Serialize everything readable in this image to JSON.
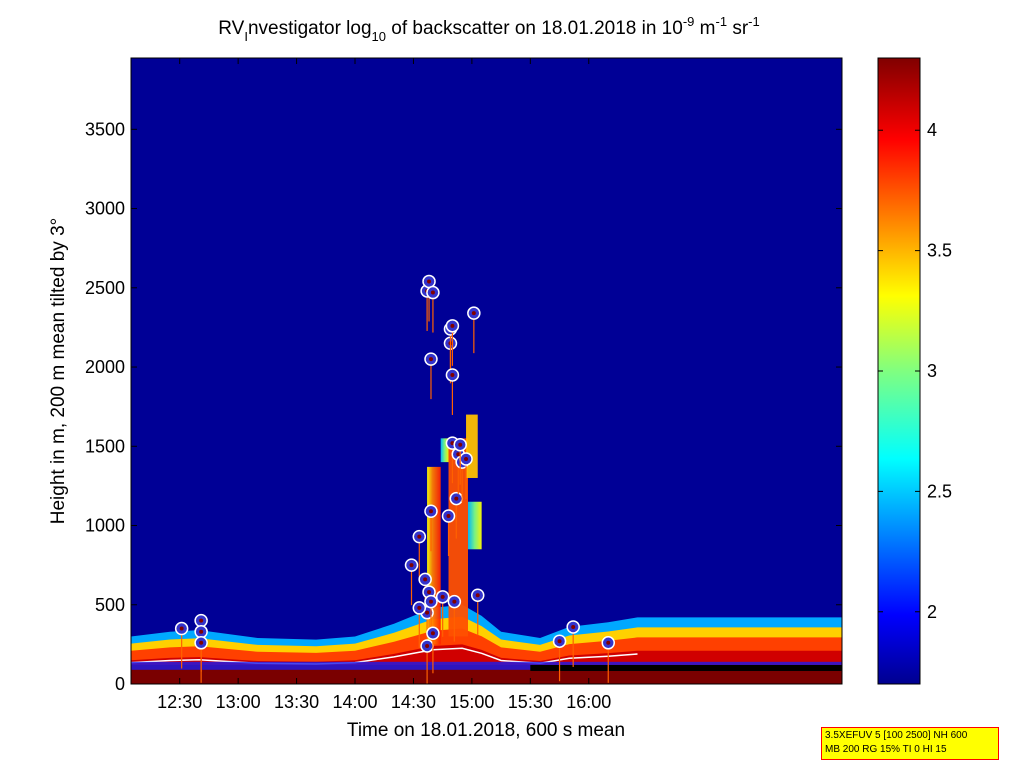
{
  "title": {
    "prefix": "RV",
    "sub1": "I",
    "middle1": "nvestigator log",
    "sub2": "10",
    "middle2": " of backscatter on 18.01.2018 in 10",
    "sup1": "-9",
    "middle3": " m",
    "sup2": "-1",
    "middle4": " sr",
    "sup3": "-1"
  },
  "info_box": {
    "line1": "3.5XEFUV 5 [100 2500] NH 600",
    "line2": "MB 200 RG 15% TI 0 HI 15"
  },
  "colors": {
    "background": "#000096",
    "layer_low": "#7a0000",
    "marker_fill": "#3333cc",
    "marker_edge": "#ffffff",
    "marker_core": "#800000"
  },
  "chart_data": {
    "type": "heatmap",
    "xlabel": "Time on 18.01.2018, 600 s mean",
    "ylabel": "Height in m, 200 m mean tilted by 3°",
    "x_unit": "minutes of day",
    "xlim": [
      725,
      1090
    ],
    "ylim": [
      0,
      3950
    ],
    "x_ticks": [
      750,
      780,
      810,
      840,
      870,
      900,
      930,
      960
    ],
    "x_tick_labels": [
      "12:30",
      "13:00",
      "13:30",
      "14:00",
      "14:30",
      "15:00",
      "15:30",
      "16:00"
    ],
    "y_ticks": [
      0,
      500,
      1000,
      1500,
      2000,
      2500,
      3000,
      3500
    ],
    "y_tick_labels": [
      "0",
      "500",
      "1000",
      "1500",
      "2000",
      "2500",
      "3000",
      "3500"
    ],
    "colorbar": {
      "range": [
        1.7,
        4.3
      ],
      "ticks": [
        2,
        2.5,
        3,
        3.5,
        4
      ],
      "tick_labels": [
        "2",
        "2.5",
        "3",
        "3.5",
        "4"
      ]
    },
    "boundary_layer_top": [
      {
        "t": 725,
        "h": 300
      },
      {
        "t": 745,
        "h": 330
      },
      {
        "t": 760,
        "h": 340
      },
      {
        "t": 790,
        "h": 290
      },
      {
        "t": 820,
        "h": 280
      },
      {
        "t": 840,
        "h": 300
      },
      {
        "t": 860,
        "h": 380
      },
      {
        "t": 880,
        "h": 480
      },
      {
        "t": 895,
        "h": 500
      },
      {
        "t": 905,
        "h": 430
      },
      {
        "t": 915,
        "h": 330
      },
      {
        "t": 935,
        "h": 290
      },
      {
        "t": 950,
        "h": 360
      },
      {
        "t": 970,
        "h": 390
      },
      {
        "t": 985,
        "h": 420
      }
    ],
    "cloud_markers": [
      {
        "t": 751,
        "h": 350
      },
      {
        "t": 761,
        "h": 400
      },
      {
        "t": 761,
        "h": 330
      },
      {
        "t": 761,
        "h": 260
      },
      {
        "t": 869,
        "h": 750
      },
      {
        "t": 873,
        "h": 930
      },
      {
        "t": 876,
        "h": 660
      },
      {
        "t": 879,
        "h": 1090
      },
      {
        "t": 877,
        "h": 2480
      },
      {
        "t": 878,
        "h": 2540
      },
      {
        "t": 880,
        "h": 2470
      },
      {
        "t": 879,
        "h": 2050
      },
      {
        "t": 888,
        "h": 1060
      },
      {
        "t": 889,
        "h": 2150
      },
      {
        "t": 889,
        "h": 2240
      },
      {
        "t": 890,
        "h": 2260
      },
      {
        "t": 890,
        "h": 1950
      },
      {
        "t": 892,
        "h": 1170
      },
      {
        "t": 890,
        "h": 1520
      },
      {
        "t": 893,
        "h": 1450
      },
      {
        "t": 895,
        "h": 1400
      },
      {
        "t": 897,
        "h": 1420
      },
      {
        "t": 894,
        "h": 1510
      },
      {
        "t": 901,
        "h": 2340
      },
      {
        "t": 878,
        "h": 580
      },
      {
        "t": 877,
        "h": 450
      },
      {
        "t": 879,
        "h": 520
      },
      {
        "t": 873,
        "h": 480
      },
      {
        "t": 877,
        "h": 240
      },
      {
        "t": 880,
        "h": 320
      },
      {
        "t": 885,
        "h": 550
      },
      {
        "t": 891,
        "h": 520
      },
      {
        "t": 903,
        "h": 560
      },
      {
        "t": 945,
        "h": 270
      },
      {
        "t": 952,
        "h": 360
      },
      {
        "t": 970,
        "h": 260
      }
    ]
  }
}
